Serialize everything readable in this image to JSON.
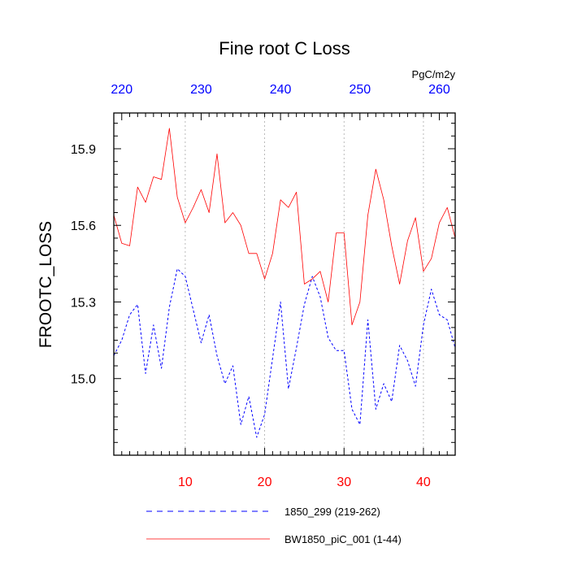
{
  "chart_data": {
    "type": "line",
    "title": "Fine root C Loss",
    "units": "PgC/m2y",
    "ylabel": "FROOTC_LOSS",
    "xlabel": "",
    "ylim": [
      14.7,
      16.04
    ],
    "yticks": [
      15.0,
      15.3,
      15.6,
      15.9
    ],
    "ytick_labels": [
      "15.0",
      "15.3",
      "15.6",
      "15.9"
    ],
    "xlim": [
      1,
      44
    ],
    "bottom_axis": {
      "ticks": [
        10,
        20,
        30,
        40
      ],
      "labels": [
        "10",
        "20",
        "30",
        "40"
      ],
      "color": "#ff0000"
    },
    "top_axis": {
      "offset": 218,
      "ticks": [
        220,
        230,
        240,
        250,
        260
      ],
      "labels": [
        "220",
        "230",
        "240",
        "250",
        "260"
      ],
      "color": "#0000ff"
    },
    "grid": "vertical dotted at major bottom ticks",
    "legend_position": "bottom",
    "series": [
      {
        "name": "1850_299 (219-262)",
        "color": "#0000ff",
        "dash": "dashed",
        "x": [
          1,
          2,
          3,
          4,
          5,
          6,
          7,
          8,
          9,
          10,
          11,
          12,
          13,
          14,
          15,
          16,
          17,
          18,
          19,
          20,
          21,
          22,
          23,
          24,
          25,
          26,
          27,
          28,
          29,
          30,
          31,
          32,
          33,
          34,
          35,
          36,
          37,
          38,
          39,
          40,
          41,
          42,
          43,
          44
        ],
        "values": [
          15.09,
          15.15,
          15.25,
          15.29,
          15.02,
          15.21,
          15.04,
          15.28,
          15.43,
          15.4,
          15.27,
          15.14,
          15.25,
          15.09,
          14.98,
          15.05,
          14.82,
          14.93,
          14.77,
          14.86,
          15.08,
          15.3,
          14.96,
          15.12,
          15.29,
          15.4,
          15.32,
          15.16,
          15.11,
          15.11,
          14.88,
          14.82,
          15.23,
          14.88,
          14.98,
          14.91,
          15.13,
          15.07,
          14.97,
          15.21,
          15.35,
          15.25,
          15.23,
          15.12
        ]
      },
      {
        "name": "BW1850_piC_001 (1-44)",
        "color": "#ff0000",
        "dash": "solid",
        "x": [
          1,
          2,
          3,
          4,
          5,
          6,
          7,
          8,
          9,
          10,
          11,
          12,
          13,
          14,
          15,
          16,
          17,
          18,
          19,
          20,
          21,
          22,
          23,
          24,
          25,
          26,
          27,
          28,
          29,
          30,
          31,
          32,
          33,
          34,
          35,
          36,
          37,
          38,
          39,
          40,
          41,
          42,
          43,
          44
        ],
        "values": [
          15.64,
          15.53,
          15.52,
          15.75,
          15.69,
          15.79,
          15.78,
          15.98,
          15.71,
          15.61,
          15.67,
          15.74,
          15.65,
          15.88,
          15.61,
          15.65,
          15.6,
          15.49,
          15.49,
          15.39,
          15.49,
          15.7,
          15.67,
          15.73,
          15.37,
          15.39,
          15.42,
          15.3,
          15.57,
          15.57,
          15.21,
          15.3,
          15.64,
          15.82,
          15.7,
          15.52,
          15.37,
          15.54,
          15.63,
          15.42,
          15.47,
          15.61,
          15.67,
          15.55
        ]
      }
    ]
  }
}
